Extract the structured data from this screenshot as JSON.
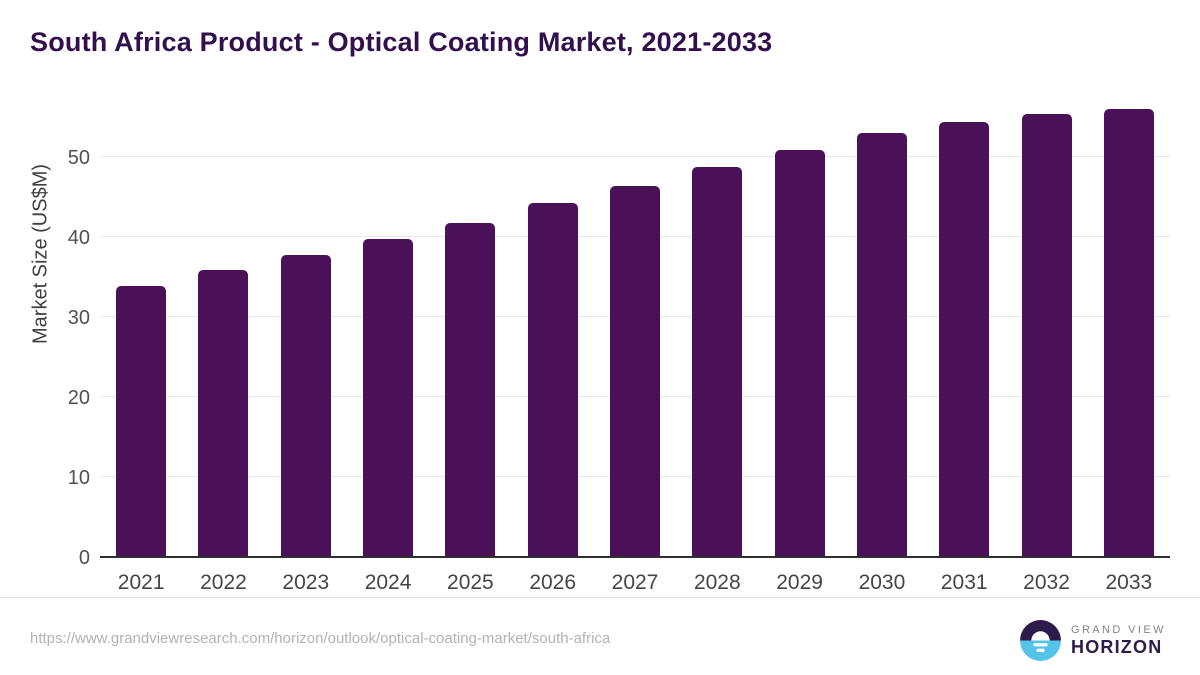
{
  "title": "South Africa Product - Optical Coating Market, 2021-2033",
  "source_url": "https://www.grandviewresearch.com/horizon/outlook/optical-coating-market/south-africa",
  "logo": {
    "line1": "GRAND VIEW",
    "line2": "HORIZON"
  },
  "colors": {
    "bar": "#4a1158",
    "title": "#32104d",
    "logo_dark_half": "#2d1b4a",
    "logo_blue_half": "#56c3e8",
    "axis_line": "#2e2e2e",
    "gridline": "#e8e8ea",
    "tick_text": "#515151",
    "source_text": "#b2b2b7"
  },
  "chart_data": {
    "type": "bar",
    "title": "South Africa Product - Optical Coating Market, 2021-2033",
    "categories": [
      "2021",
      "2022",
      "2023",
      "2024",
      "2025",
      "2026",
      "2027",
      "2028",
      "2029",
      "2030",
      "2031",
      "2032",
      "2033"
    ],
    "values": [
      33.7,
      35.8,
      37.6,
      39.6,
      41.6,
      44.1,
      46.3,
      48.6,
      50.8,
      52.9,
      54.2,
      55.2,
      55.9
    ],
    "xlabel": "",
    "ylabel": "Market Size (US$M)",
    "ylim": [
      0,
      57.5
    ],
    "yticks": [
      0,
      10,
      20,
      30,
      40,
      50
    ],
    "grid": "horizontal",
    "legend": "none"
  }
}
